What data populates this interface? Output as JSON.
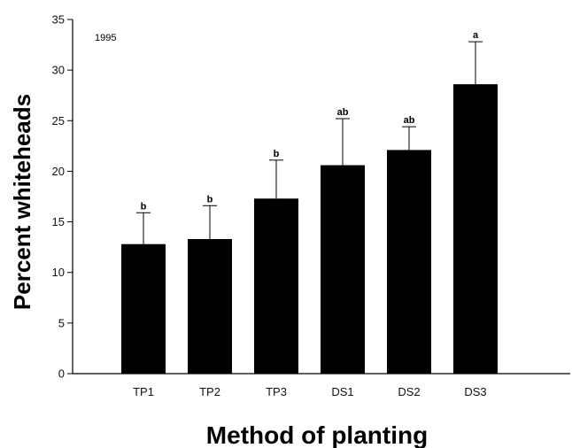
{
  "chart_data": {
    "type": "bar",
    "annotation": "1995",
    "xlabel": "Method of planting",
    "ylabel": "Percent whiteheads",
    "categories": [
      "TP1",
      "TP2",
      "TP3",
      "DS1",
      "DS2",
      "DS3"
    ],
    "values": [
      12.8,
      13.3,
      17.3,
      20.6,
      22.1,
      28.6
    ],
    "error_upper": [
      15.9,
      16.6,
      21.1,
      25.2,
      24.4,
      32.8
    ],
    "significance": [
      "b",
      "b",
      "b",
      "ab",
      "ab",
      "a"
    ],
    "ylim": [
      0,
      35
    ],
    "yticks": [
      "0",
      "5",
      "10",
      "15",
      "20",
      "25",
      "30",
      "35"
    ],
    "bar_color": "#000000",
    "grid": false
  }
}
